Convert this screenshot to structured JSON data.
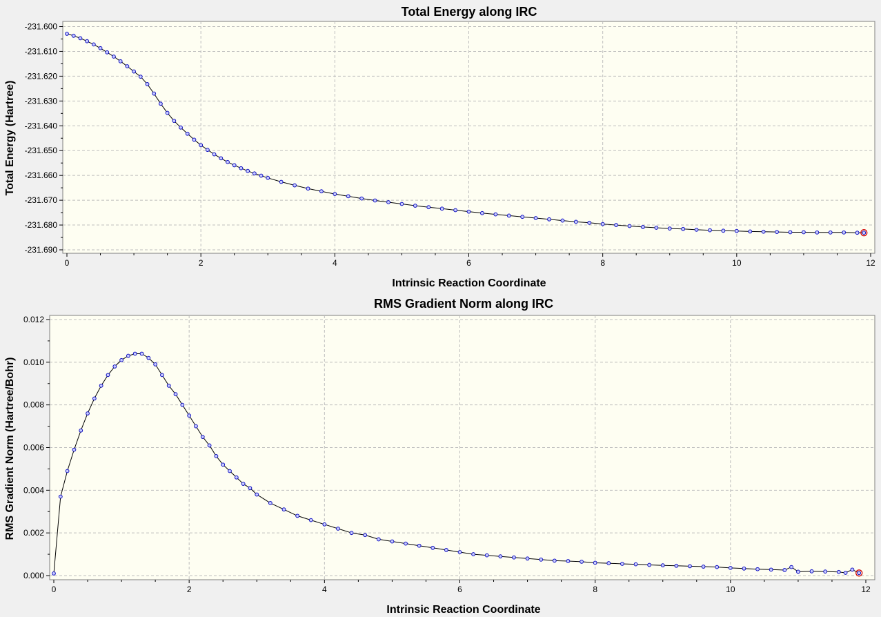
{
  "chart_data": [
    {
      "type": "line",
      "title": "Total Energy along IRC",
      "xlabel": "Intrinsic Reaction Coordinate",
      "ylabel": "Total Energy (Hartree)",
      "xlim": [
        0,
        12
      ],
      "ylim": [
        -231.69,
        -231.6
      ],
      "x_ticks": [
        "0",
        "2",
        "4",
        "6",
        "8",
        "10",
        "12"
      ],
      "y_ticks": [
        "-231.600",
        "-231.610",
        "-231.620",
        "-231.630",
        "-231.640",
        "-231.650",
        "-231.660",
        "-231.670",
        "-231.680",
        "-231.690"
      ],
      "grid": true,
      "marker_color": "#1010c0",
      "current_point_color": "#d00000",
      "series": [
        {
          "x": [
            0,
            0.1,
            0.2,
            0.3,
            0.4,
            0.5,
            0.6,
            0.7,
            0.8,
            0.9,
            1.0,
            1.1,
            1.2,
            1.3,
            1.4,
            1.5,
            1.6,
            1.7,
            1.8,
            1.9,
            2.0,
            2.1,
            2.2,
            2.3,
            2.4,
            2.5,
            2.6,
            2.7,
            2.8,
            2.9,
            3.0,
            3.2,
            3.4,
            3.6,
            3.8,
            4.0,
            4.2,
            4.4,
            4.6,
            4.8,
            5.0,
            5.2,
            5.4,
            5.6,
            5.8,
            6.0,
            6.2,
            6.4,
            6.6,
            6.8,
            7.0,
            7.2,
            7.4,
            7.6,
            7.8,
            8.0,
            8.2,
            8.4,
            8.6,
            8.8,
            9.0,
            9.2,
            9.4,
            9.6,
            9.8,
            10.0,
            10.2,
            10.4,
            10.6,
            10.8,
            11.0,
            11.2,
            11.4,
            11.6,
            11.8,
            11.9
          ],
          "y": [
            -231.6029,
            -231.6037,
            -231.6047,
            -231.6059,
            -231.6072,
            -231.6087,
            -231.6104,
            -231.6121,
            -231.614,
            -231.616,
            -231.6181,
            -231.6202,
            -231.6232,
            -231.627,
            -231.6311,
            -231.6348,
            -231.638,
            -231.6407,
            -231.6432,
            -231.6456,
            -231.6478,
            -231.6497,
            -231.6515,
            -231.6531,
            -231.6546,
            -231.6559,
            -231.6571,
            -231.6582,
            -231.6592,
            -231.6601,
            -231.661,
            -231.6626,
            -231.664,
            -231.6653,
            -231.6664,
            -231.6675,
            -231.6684,
            -231.6693,
            -231.6701,
            -231.6708,
            -231.6715,
            -231.6722,
            -231.6728,
            -231.6734,
            -231.674,
            -231.6746,
            -231.6752,
            -231.6757,
            -231.6762,
            -231.6767,
            -231.6772,
            -231.6777,
            -231.6782,
            -231.6787,
            -231.6791,
            -231.6796,
            -231.68,
            -231.6804,
            -231.6808,
            -231.6811,
            -231.6814,
            -231.6816,
            -231.6819,
            -231.6821,
            -231.6823,
            -231.6824,
            -231.6826,
            -231.6827,
            -231.6828,
            -231.6829,
            -231.6829,
            -231.683,
            -231.683,
            -231.683,
            -231.6831,
            -231.6831
          ]
        }
      ]
    },
    {
      "type": "line",
      "title": "RMS Gradient Norm along IRC",
      "xlabel": "Intrinsic Reaction Coordinate",
      "ylabel": "RMS Gradient Norm (Hartree/Bohr)",
      "xlim": [
        0,
        12
      ],
      "ylim": [
        0,
        0.012
      ],
      "x_ticks": [
        "0",
        "2",
        "4",
        "6",
        "8",
        "10",
        "12"
      ],
      "y_ticks": [
        "0.000",
        "0.002",
        "0.004",
        "0.006",
        "0.008",
        "0.010",
        "0.012"
      ],
      "grid": true,
      "marker_color": "#1010c0",
      "current_point_color": "#d00000",
      "series": [
        {
          "x": [
            0,
            0.1,
            0.2,
            0.3,
            0.4,
            0.5,
            0.6,
            0.7,
            0.8,
            0.9,
            1.0,
            1.1,
            1.2,
            1.3,
            1.4,
            1.5,
            1.6,
            1.7,
            1.8,
            1.9,
            2.0,
            2.1,
            2.2,
            2.3,
            2.4,
            2.5,
            2.6,
            2.7,
            2.8,
            2.9,
            3.0,
            3.2,
            3.4,
            3.6,
            3.8,
            4.0,
            4.2,
            4.4,
            4.6,
            4.8,
            5.0,
            5.2,
            5.4,
            5.6,
            5.8,
            6.0,
            6.2,
            6.4,
            6.6,
            6.8,
            7.0,
            7.2,
            7.4,
            7.6,
            7.8,
            8.0,
            8.2,
            8.4,
            8.6,
            8.8,
            9.0,
            9.2,
            9.4,
            9.6,
            9.8,
            10.0,
            10.2,
            10.4,
            10.6,
            10.8,
            10.9,
            11.0,
            11.2,
            11.4,
            11.6,
            11.7,
            11.8,
            11.9
          ],
          "y": [
            0.0001,
            0.0037,
            0.0049,
            0.0059,
            0.0068,
            0.0076,
            0.0083,
            0.0089,
            0.0094,
            0.0098,
            0.0101,
            0.0103,
            0.0104,
            0.0104,
            0.0102,
            0.0099,
            0.0094,
            0.0089,
            0.0085,
            0.008,
            0.0075,
            0.007,
            0.0065,
            0.0061,
            0.0056,
            0.0052,
            0.0049,
            0.0046,
            0.0043,
            0.0041,
            0.0038,
            0.0034,
            0.0031,
            0.0028,
            0.0026,
            0.0024,
            0.0022,
            0.002,
            0.0019,
            0.0017,
            0.0016,
            0.0015,
            0.0014,
            0.0013,
            0.0012,
            0.0011,
            0.001,
            0.00095,
            0.0009,
            0.00085,
            0.0008,
            0.00075,
            0.0007,
            0.00068,
            0.00065,
            0.0006,
            0.00058,
            0.00055,
            0.00053,
            0.0005,
            0.00048,
            0.00046,
            0.00044,
            0.00042,
            0.0004,
            0.00036,
            0.00033,
            0.0003,
            0.00028,
            0.00026,
            0.0004,
            0.00018,
            0.0002,
            0.00019,
            0.00017,
            0.00013,
            0.00028,
            0.00012
          ]
        }
      ]
    }
  ]
}
